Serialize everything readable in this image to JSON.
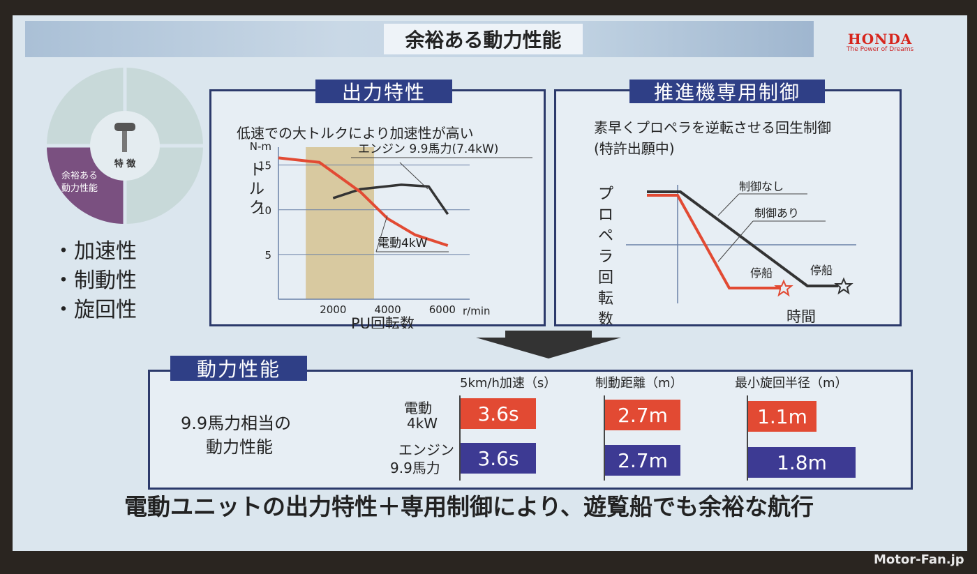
{
  "slide": {
    "title": "余裕ある動力性能",
    "brand": "HONDA",
    "brand_tagline": "The Power of Dreams"
  },
  "pie": {
    "center_label": "特 徴",
    "highlight_label_line1": "余裕ある",
    "highlight_label_line2": "動力性能"
  },
  "features": [
    "・加速性",
    "・制動性",
    "・旋回性"
  ],
  "panel_output": {
    "title": "出力特性",
    "subtitle": "低速での大トルクにより加速性が高い",
    "y_unit": "N-m",
    "y_label": "トルク",
    "x_label": "PU回転数",
    "x_unit": "r/min",
    "engine_label": "エンジン 9.9馬力(7.4kW)",
    "motor_label": "電動4kW"
  },
  "panel_control": {
    "title": "推進機専用制御",
    "subtitle_line1": "素早くプロペラを逆転させる回生制御",
    "subtitle_line2": "(特許出願中)",
    "y_label": "プロペラ回転数",
    "x_label": "時間",
    "no_control_label": "制御なし",
    "with_control_label": "制御あり",
    "stop_label_with": "停船",
    "stop_label_no": "停船"
  },
  "performance": {
    "title": "動力性能",
    "desc_line1": "9.9馬力相当の",
    "desc_line2": "動力性能",
    "headers": [
      "5km/h加速（s）",
      "制動距離（m）",
      "最小旋回半径（m）"
    ],
    "rows": [
      {
        "label_line1": "電動",
        "label_line2": "4kW",
        "values": [
          "3.6s",
          "2.7m",
          "1.1m"
        ]
      },
      {
        "label_line1": "エンジン",
        "label_line2": "9.9馬力",
        "values": [
          "3.6s",
          "2.7m",
          "1.8m"
        ]
      }
    ]
  },
  "bottom_message": "電動ユニットの出力特性＋専用制御により、遊覧船でも余裕な航行",
  "watermark": "Motor-Fan.jp",
  "chart_data": [
    {
      "type": "line",
      "title": "低速での大トルクにより加速性が高い",
      "xlabel": "PU回転数",
      "ylabel": "トルク",
      "x_ticks": [
        2000,
        4000,
        6000
      ],
      "y_ticks": [
        5,
        10,
        15
      ],
      "xlim": [
        0,
        7000
      ],
      "ylim": [
        0,
        17
      ],
      "highlight_x_range": [
        1000,
        3500
      ],
      "series": [
        {
          "name": "エンジン 9.9馬力(7.4kW)",
          "color": "#333333",
          "x": [
            2000,
            3000,
            4500,
            5500,
            6200
          ],
          "y": [
            11.3,
            12.3,
            12.8,
            12.6,
            9.5
          ]
        },
        {
          "name": "電動4kW",
          "color": "#e24a33",
          "x": [
            0,
            1500,
            3000,
            4000,
            5000,
            6200
          ],
          "y": [
            15.8,
            15.3,
            12.0,
            9.0,
            7.2,
            6.0
          ]
        }
      ]
    },
    {
      "type": "line",
      "title": "素早くプロペラを逆転させる回生制御",
      "xlabel": "時間",
      "ylabel": "プロペラ回転数",
      "series": [
        {
          "name": "制御なし",
          "color": "#333333"
        },
        {
          "name": "制御あり",
          "color": "#e24a33"
        }
      ]
    }
  ]
}
